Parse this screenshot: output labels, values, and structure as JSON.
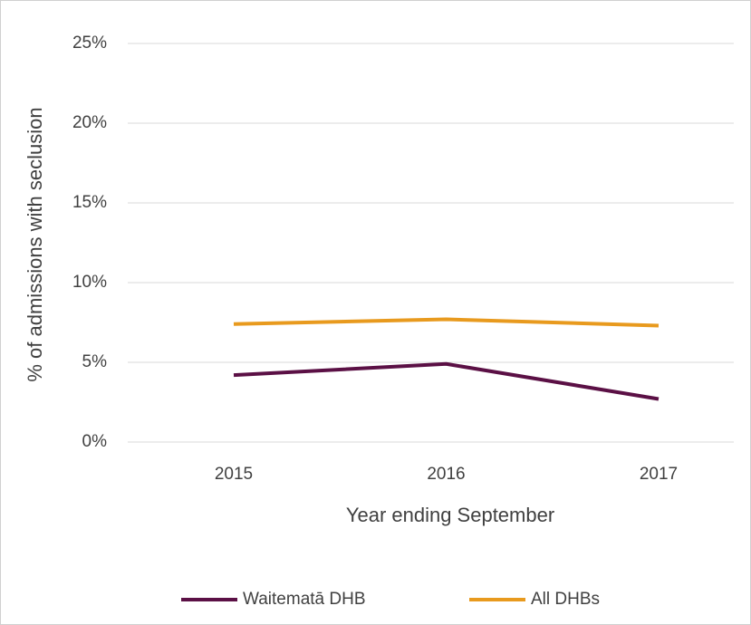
{
  "chart_data": {
    "type": "line",
    "xlabel": "Year ending September",
    "ylabel": "% of admissions with seclusion",
    "categories": [
      "2015",
      "2016",
      "2017"
    ],
    "series": [
      {
        "name": "Waitematā DHB",
        "color": "#5b1045",
        "values": [
          4.2,
          4.9,
          2.7
        ]
      },
      {
        "name": "All DHBs",
        "color": "#e89a1e",
        "values": [
          7.4,
          7.7,
          7.3
        ]
      }
    ],
    "ylim": [
      0,
      25
    ],
    "yticks": [
      {
        "value": 0,
        "label": "0%"
      },
      {
        "value": 5,
        "label": "5%"
      },
      {
        "value": 10,
        "label": "10%"
      },
      {
        "value": 15,
        "label": "15%"
      },
      {
        "value": 20,
        "label": "20%"
      },
      {
        "value": 25,
        "label": "25%"
      }
    ],
    "grid": true,
    "legend": "bottom"
  }
}
